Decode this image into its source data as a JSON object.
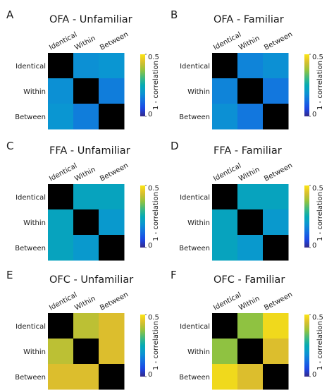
{
  "chart_data": [
    {
      "type": "heatmap",
      "panel_letter": "A",
      "title": "OFA - Unfamiliar",
      "rows": [
        "Identical",
        "Within",
        "Between"
      ],
      "columns": [
        "Identical",
        "Within",
        "Between"
      ],
      "values": [
        [
          0,
          0.18,
          0.19
        ],
        [
          0.18,
          0,
          0.15
        ],
        [
          0.19,
          0.15,
          0
        ]
      ],
      "colorbar": {
        "label": "1 - correlation",
        "ticks": [
          0,
          0.5
        ],
        "tick_labels": [
          "0",
          "0.5"
        ],
        "vmin": 0,
        "vmax": 0.5
      },
      "diagonal_color": "#000000"
    },
    {
      "type": "heatmap",
      "panel_letter": "B",
      "title": "OFA - Familiar",
      "rows": [
        "Identical",
        "Within",
        "Between"
      ],
      "columns": [
        "Identical",
        "Within",
        "Between"
      ],
      "values": [
        [
          0,
          0.16,
          0.18
        ],
        [
          0.16,
          0,
          0.14
        ],
        [
          0.18,
          0.14,
          0
        ]
      ],
      "colorbar": {
        "label": "1 - correlation",
        "ticks": [
          0,
          0.5
        ],
        "tick_labels": [
          "0",
          "0.5"
        ],
        "vmin": 0,
        "vmax": 0.5
      },
      "diagonal_color": "#000000"
    },
    {
      "type": "heatmap",
      "panel_letter": "C",
      "title": "FFA - Unfamiliar",
      "rows": [
        "Identical",
        "Within",
        "Between"
      ],
      "columns": [
        "Identical",
        "Within",
        "Between"
      ],
      "values": [
        [
          0,
          0.23,
          0.23
        ],
        [
          0.23,
          0,
          0.2
        ],
        [
          0.23,
          0.2,
          0
        ]
      ],
      "colorbar": {
        "label": "1 - correlation",
        "ticks": [
          0,
          0.5
        ],
        "tick_labels": [
          "0",
          "0.5"
        ],
        "vmin": 0,
        "vmax": 0.5
      },
      "diagonal_color": "#000000"
    },
    {
      "type": "heatmap",
      "panel_letter": "D",
      "title": "FFA - Familiar",
      "rows": [
        "Identical",
        "Within",
        "Between"
      ],
      "columns": [
        "Identical",
        "Within",
        "Between"
      ],
      "values": [
        [
          0,
          0.23,
          0.23
        ],
        [
          0.23,
          0,
          0.2
        ],
        [
          0.23,
          0.2,
          0
        ]
      ],
      "colorbar": {
        "label": "1 - correlation",
        "ticks": [
          0,
          0.5
        ],
        "tick_labels": [
          "0",
          "0.5"
        ],
        "vmin": 0,
        "vmax": 0.5
      },
      "diagonal_color": "#000000"
    },
    {
      "type": "heatmap",
      "panel_letter": "E",
      "title": "OFC - Unfamiliar",
      "rows": [
        "Identical",
        "Within",
        "Between"
      ],
      "columns": [
        "Identical",
        "Within",
        "Between"
      ],
      "values": [
        [
          0,
          0.41,
          0.44
        ],
        [
          0.41,
          0,
          0.44
        ],
        [
          0.44,
          0.44,
          0
        ]
      ],
      "colorbar": {
        "label": "1 - correlation",
        "ticks": [
          0,
          0.5
        ],
        "tick_labels": [
          "0",
          "0.5"
        ],
        "vmin": 0,
        "vmax": 0.5
      },
      "diagonal_color": "#000000"
    },
    {
      "type": "heatmap",
      "panel_letter": "F",
      "title": "OFC - Familiar",
      "rows": [
        "Identical",
        "Within",
        "Between"
      ],
      "columns": [
        "Identical",
        "Within",
        "Between"
      ],
      "values": [
        [
          0,
          0.37,
          0.48
        ],
        [
          0.37,
          0,
          0.44
        ],
        [
          0.48,
          0.44,
          0
        ]
      ],
      "colorbar": {
        "label": "1 - correlation",
        "ticks": [
          0,
          0.5
        ],
        "tick_labels": [
          "0",
          "0.5"
        ],
        "vmin": 0,
        "vmax": 0.5
      },
      "diagonal_color": "#000000"
    }
  ]
}
